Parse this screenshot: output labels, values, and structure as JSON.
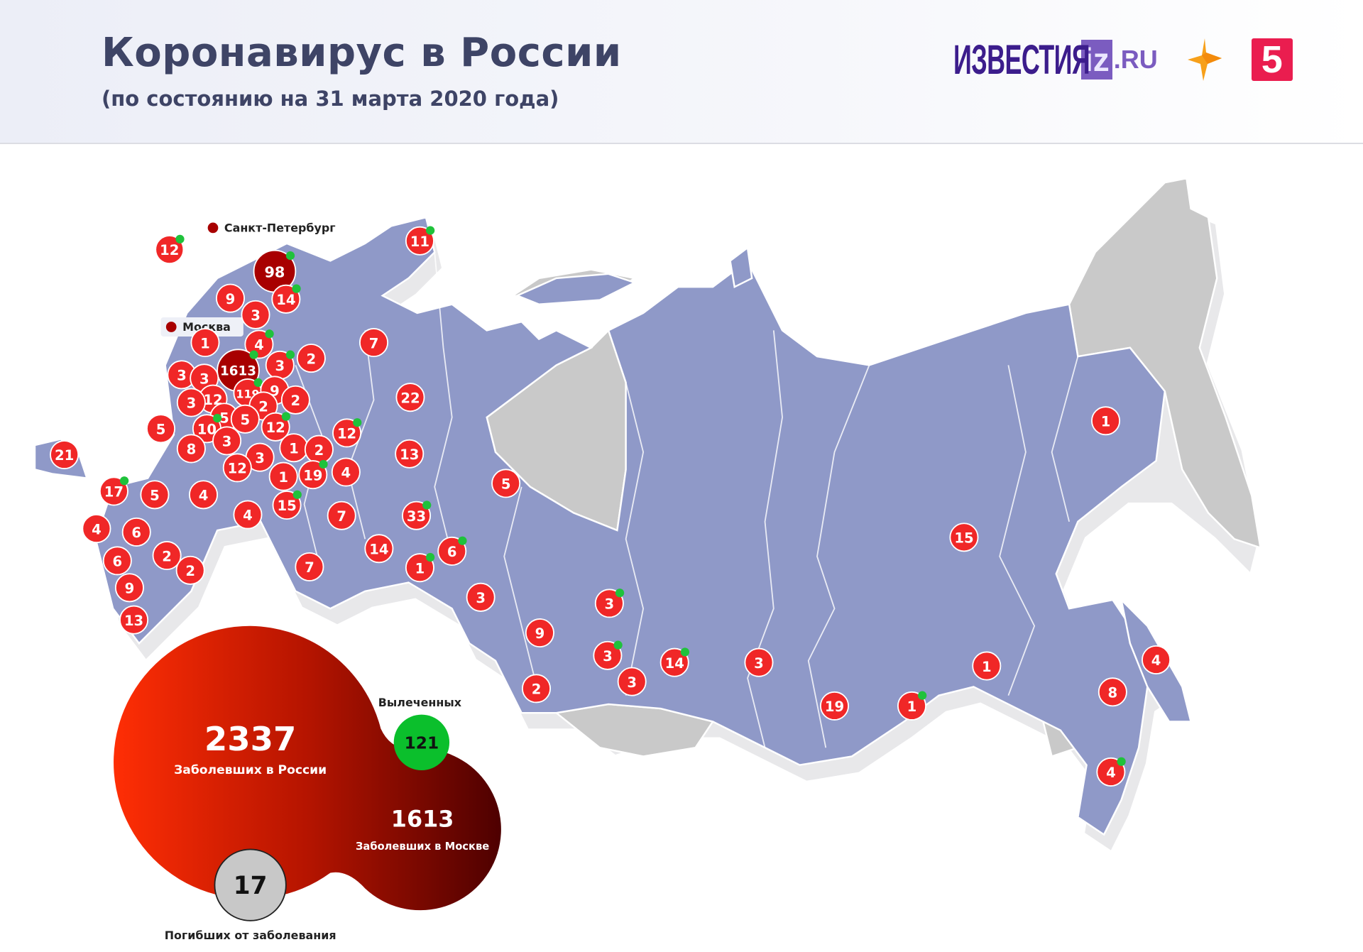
{
  "header": {
    "title": "Коронавирус в России",
    "subtitle": "(по состоянию на 31 марта 2020 года)",
    "logos": {
      "izvestia": "ИЗВЕСТИЯ",
      "iz": "iz",
      "ru": ".RU",
      "ren_tv": "РЕН ТВ",
      "channel5": "5"
    }
  },
  "colors": {
    "region_affected": "#8f99c8",
    "region_unaffected": "#c9c9c9",
    "bubble": "#f02727",
    "city_bubble": "#a80000",
    "recovered": "#1fc23b",
    "deaths": "#c8c8c8",
    "title": "#3e4466"
  },
  "map": {
    "city_labels": [
      {
        "name": "Санкт-Петербург"
      },
      {
        "name": "Москва"
      }
    ],
    "regions": [
      {
        "value": 12,
        "recovered": true
      },
      {
        "value": 98,
        "recovered": true,
        "city": "Санкт-Петербург"
      },
      {
        "value": 11,
        "recovered": true
      },
      {
        "value": 9,
        "recovered": false
      },
      {
        "value": 14,
        "recovered": true
      },
      {
        "value": 3,
        "recovered": false
      },
      {
        "value": 1,
        "recovered": false
      },
      {
        "value": 4,
        "recovered": true
      },
      {
        "value": 1613,
        "recovered": true,
        "city": "Москва"
      },
      {
        "value": 3,
        "recovered": true
      },
      {
        "value": 2,
        "recovered": false
      },
      {
        "value": 7,
        "recovered": false
      },
      {
        "value": 3,
        "recovered": false
      },
      {
        "value": 3,
        "recovered": false
      },
      {
        "value": 12,
        "recovered": false
      },
      {
        "value": 3,
        "recovered": false
      },
      {
        "value": 119,
        "recovered": true
      },
      {
        "value": 9,
        "recovered": false
      },
      {
        "value": 2,
        "recovered": false
      },
      {
        "value": 2,
        "recovered": false
      },
      {
        "value": 22,
        "recovered": false
      },
      {
        "value": 5,
        "recovered": false
      },
      {
        "value": 5,
        "recovered": false
      },
      {
        "value": 5,
        "recovered": false
      },
      {
        "value": 10,
        "recovered": true
      },
      {
        "value": 12,
        "recovered": true
      },
      {
        "value": 12,
        "recovered": true
      },
      {
        "value": 3,
        "recovered": false
      },
      {
        "value": 8,
        "recovered": false
      },
      {
        "value": 1,
        "recovered": false
      },
      {
        "value": 2,
        "recovered": false
      },
      {
        "value": 13,
        "recovered": false
      },
      {
        "value": 21,
        "recovered": false
      },
      {
        "value": 3,
        "recovered": false
      },
      {
        "value": 12,
        "recovered": false
      },
      {
        "value": 1,
        "recovered": false
      },
      {
        "value": 19,
        "recovered": true
      },
      {
        "value": 4,
        "recovered": false
      },
      {
        "value": 5,
        "recovered": false
      },
      {
        "value": 17,
        "recovered": true
      },
      {
        "value": 5,
        "recovered": false
      },
      {
        "value": 4,
        "recovered": false
      },
      {
        "value": 15,
        "recovered": true
      },
      {
        "value": 4,
        "recovered": false
      },
      {
        "value": 7,
        "recovered": false
      },
      {
        "value": 33,
        "recovered": true
      },
      {
        "value": 4,
        "recovered": false
      },
      {
        "value": 6,
        "recovered": false
      },
      {
        "value": 14,
        "recovered": false
      },
      {
        "value": 6,
        "recovered": true
      },
      {
        "value": 1,
        "recovered": true
      },
      {
        "value": 6,
        "recovered": false
      },
      {
        "value": 2,
        "recovered": false
      },
      {
        "value": 2,
        "recovered": false
      },
      {
        "value": 7,
        "recovered": false
      },
      {
        "value": 9,
        "recovered": false
      },
      {
        "value": 3,
        "recovered": false
      },
      {
        "value": 3,
        "recovered": true
      },
      {
        "value": 13,
        "recovered": false
      },
      {
        "value": 9,
        "recovered": false
      },
      {
        "value": 3,
        "recovered": true
      },
      {
        "value": 14,
        "recovered": true
      },
      {
        "value": 3,
        "recovered": false
      },
      {
        "value": 2,
        "recovered": false
      },
      {
        "value": 3,
        "recovered": false
      },
      {
        "value": 1,
        "recovered": false
      },
      {
        "value": 15,
        "recovered": false
      },
      {
        "value": 1,
        "recovered": false
      },
      {
        "value": 4,
        "recovered": false
      },
      {
        "value": 8,
        "recovered": false
      },
      {
        "value": 19,
        "recovered": false
      },
      {
        "value": 1,
        "recovered": true
      },
      {
        "value": 4,
        "recovered": true
      }
    ]
  },
  "summary": {
    "russia_total": "2337",
    "russia_label": "Заболевших в России",
    "moscow_total": "1613",
    "moscow_label": "Заболевших в Москве",
    "recovered_total": "121",
    "recovered_label": "Вылеченных",
    "deaths_total": "17",
    "deaths_label": "Погибших от заболевания"
  }
}
